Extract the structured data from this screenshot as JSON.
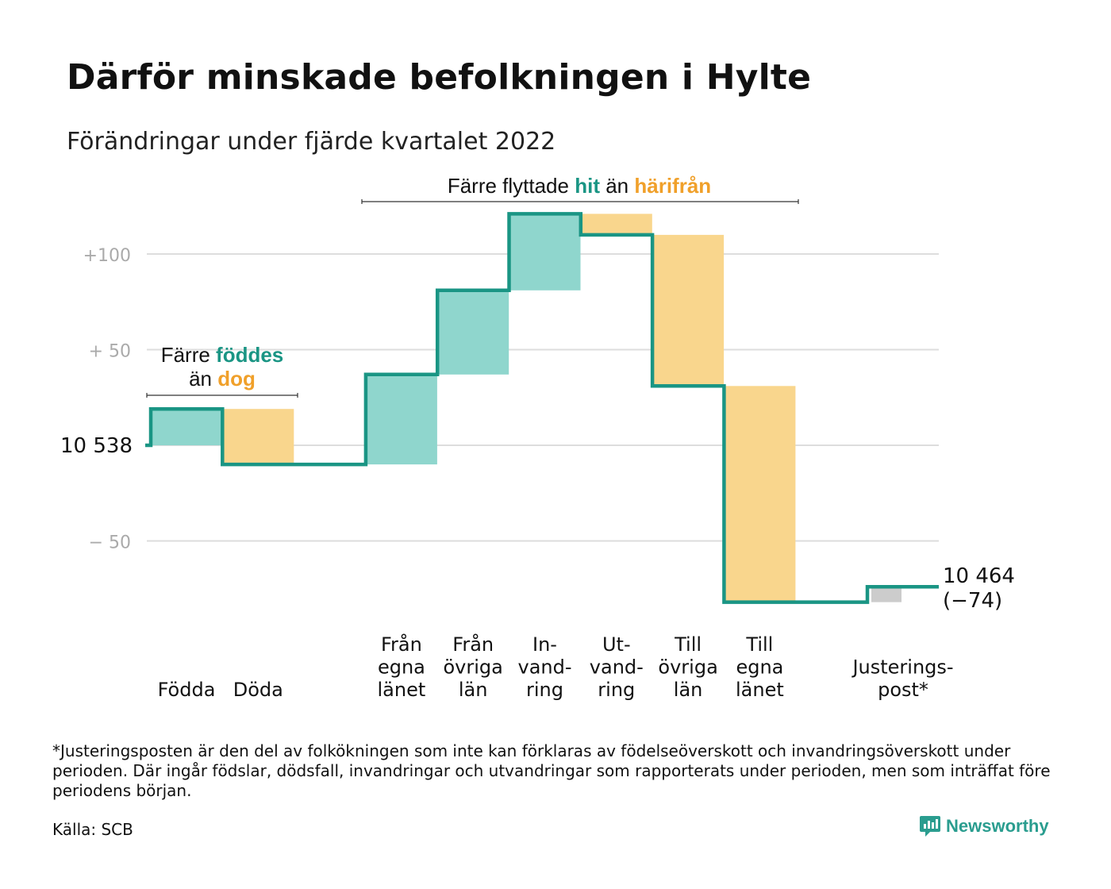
{
  "title": "Därför minskade befolkningen i Hylte",
  "subtitle": "Förändringar under fjärde kvartalet 2022",
  "colors": {
    "teal_line": "#1a9584",
    "teal_fill": "#8fd6cd",
    "orange_fill": "#f9d68d",
    "orange_text": "#f0a02a",
    "gray_fill": "#cccccc",
    "grid": "#dddddd",
    "tick_text": "#aaaaaa"
  },
  "annotations": {
    "births": {
      "pre1": "Färre ",
      "hl1": "föddes",
      "pre2": "än ",
      "hl2": "dog"
    },
    "migration": {
      "pre1": "Färre flyttade ",
      "hl1": "hit",
      "pre2": " än ",
      "hl2": "härifrån"
    }
  },
  "chart_data": {
    "type": "waterfall",
    "start_label": "10 538",
    "end_label": "10 464",
    "change_label": "(−74)",
    "y_ticks": [
      {
        "label": "+100",
        "value": 100
      },
      {
        "label": "+ 50",
        "value": 50
      },
      {
        "label": "",
        "value": 0
      },
      {
        "label": "− 50",
        "value": -50
      }
    ],
    "ylim": [
      -90,
      125
    ],
    "steps": [
      {
        "category": "Födda",
        "label_lines": [
          "Födda"
        ],
        "value": 19,
        "kind": "in",
        "slot": 0
      },
      {
        "category": "Döda",
        "label_lines": [
          "Döda"
        ],
        "value": -29,
        "kind": "out",
        "slot": 1
      },
      {
        "category": "Från egna länet",
        "label_lines": [
          "Från",
          "egna",
          "länet"
        ],
        "value": 47,
        "kind": "in",
        "slot": 3
      },
      {
        "category": "Från övriga län",
        "label_lines": [
          "Från",
          "övriga",
          "län"
        ],
        "value": 44,
        "kind": "in",
        "slot": 4
      },
      {
        "category": "Invandring",
        "label_lines": [
          "In-",
          "vand-",
          "ring"
        ],
        "value": 40,
        "kind": "in",
        "slot": 5
      },
      {
        "category": "Utvandring",
        "label_lines": [
          "Ut-",
          "vand-",
          "ring"
        ],
        "value": -11,
        "kind": "out",
        "slot": 6
      },
      {
        "category": "Till övriga län",
        "label_lines": [
          "Till",
          "övriga",
          "län"
        ],
        "value": -79,
        "kind": "out",
        "slot": 7
      },
      {
        "category": "Till egna länet",
        "label_lines": [
          "Till",
          "egna",
          "länet"
        ],
        "value": -113,
        "kind": "out",
        "slot": 8
      },
      {
        "category": "Justeringspost*",
        "label_lines": [
          "Justerings-",
          "post*"
        ],
        "value": 8,
        "kind": "adjust",
        "slot": 10
      }
    ]
  },
  "footnote": "*Justeringsposten är den del av folkökningen som inte kan förklaras av födelseöverskott och invandringsöverskott under perioden. Där ingår födslar, dödsfall, invandringar och utvandringar som rapporterats under perioden, men som inträffat före periodens början.",
  "source": "Källa: SCB",
  "brand": {
    "name": "Newsworthy",
    "icon": "newsworthy-logo-icon"
  }
}
